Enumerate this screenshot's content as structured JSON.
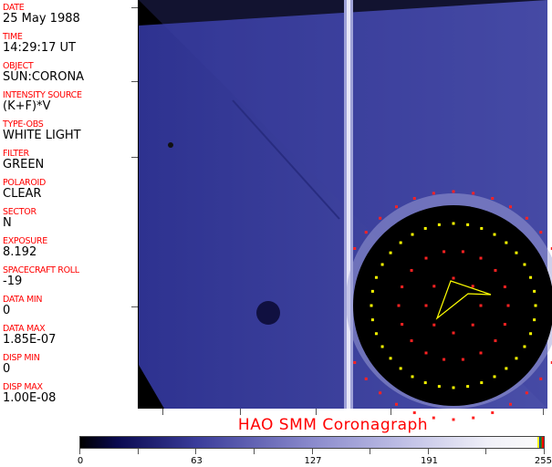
{
  "fields": [
    {
      "label": "DATE",
      "value": "25 May 1988"
    },
    {
      "label": "TIME",
      "value": "14:29:17 UT"
    },
    {
      "label": "OBJECT",
      "value": "SUN:CORONA"
    },
    {
      "label": "INTENSITY SOURCE",
      "value": "(K+F)*V"
    },
    {
      "label": "TYPE-OBS",
      "value": "WHITE LIGHT"
    },
    {
      "label": "FILTER",
      "value": "GREEN"
    },
    {
      "label": "POLAROID",
      "value": "CLEAR"
    },
    {
      "label": "SECTOR",
      "value": "N"
    },
    {
      "label": "EXPOSURE",
      "value": "8.192"
    },
    {
      "label": "SPACECRAFT ROLL",
      "value": "-19"
    },
    {
      "label": "DATA MIN",
      "value": "0"
    },
    {
      "label": "DATA MAX",
      "value": "1.85E-07"
    },
    {
      "label": "DISP MIN",
      "value": "0"
    },
    {
      "label": "DISP MAX",
      "value": "1.00E-08"
    }
  ],
  "title": "HAO  SMM Coronagraph",
  "colorbar": {
    "labels": [
      "0",
      "63",
      "127",
      "191",
      "255"
    ],
    "colors": {
      "low": "#000000",
      "mid": "#3a3c9a",
      "high": "#fafafa"
    }
  }
}
